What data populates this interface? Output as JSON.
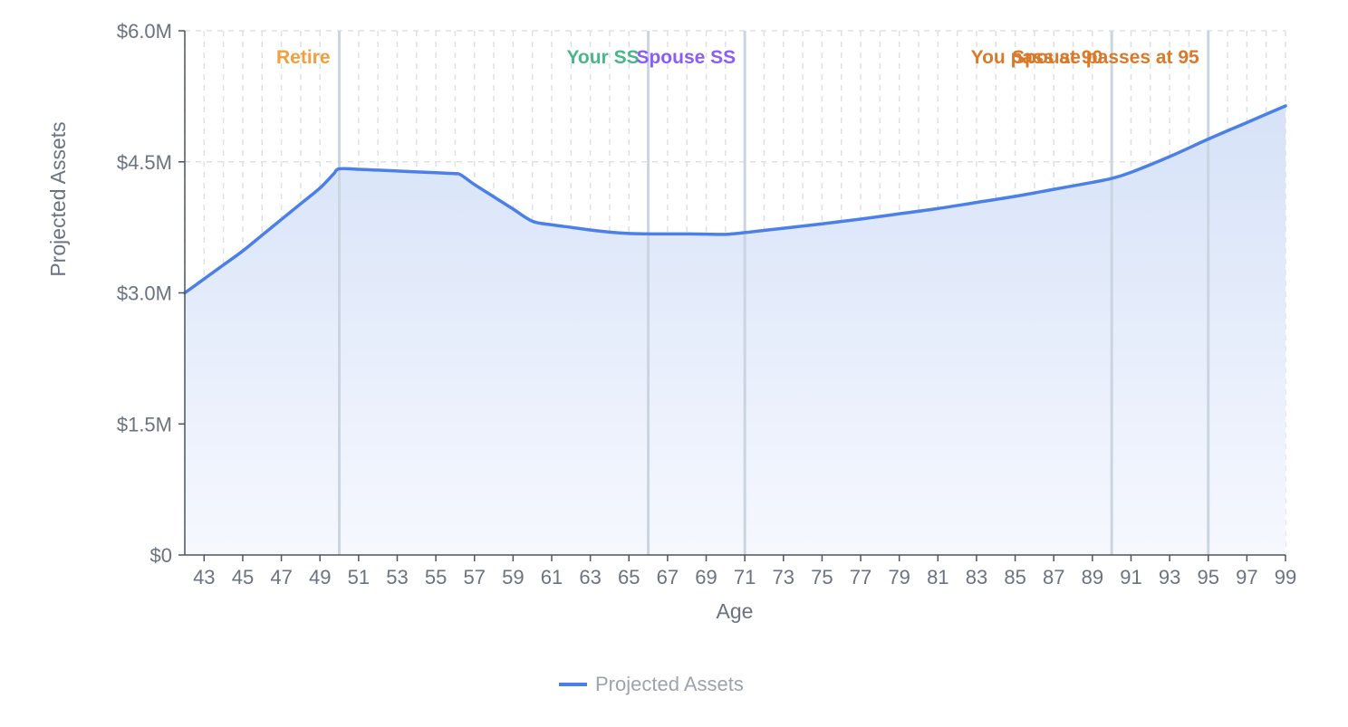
{
  "chart_data": {
    "type": "area",
    "xlabel": "Age",
    "ylabel": "Projected Assets",
    "xlim": [
      42,
      99
    ],
    "ylim": [
      0,
      6000000
    ],
    "x_ticks": [
      43,
      45,
      47,
      49,
      51,
      53,
      55,
      57,
      59,
      61,
      63,
      65,
      67,
      69,
      71,
      73,
      75,
      77,
      79,
      81,
      83,
      85,
      87,
      89,
      91,
      93,
      95,
      97,
      99
    ],
    "y_ticks": [
      {
        "value": 0,
        "label": "$0"
      },
      {
        "value": 1500000,
        "label": "$1.5M"
      },
      {
        "value": 3000000,
        "label": "$3.0M"
      },
      {
        "value": 4500000,
        "label": "$4.5M"
      },
      {
        "value": 6000000,
        "label": "$6.0M"
      }
    ],
    "grid": true,
    "legend": {
      "position": "bottom-center"
    },
    "colors": {
      "line": "#4a80e8",
      "area_top": "#d6e2f8",
      "area_bottom": "#f6f8fe",
      "grid": "#dde1e7",
      "marker_line": "#cbd5e1",
      "axis": "#4b5563"
    },
    "series": [
      {
        "name": "Projected Assets",
        "x": [
          42,
          43,
          44,
          45,
          46,
          47,
          48,
          49,
          49.7,
          50,
          51,
          52,
          53,
          54,
          55,
          56,
          56.3,
          57,
          58,
          59,
          60,
          61,
          62,
          63,
          64,
          65,
          66,
          67,
          68,
          69,
          70,
          71,
          72,
          73,
          75,
          77,
          79,
          81,
          83,
          85,
          87,
          89,
          90,
          91,
          93,
          95,
          97,
          99
        ],
        "y": [
          3000000,
          3160000,
          3320000,
          3480000,
          3660000,
          3840000,
          4020000,
          4200000,
          4360000,
          4420000,
          4415000,
          4405000,
          4395000,
          4385000,
          4375000,
          4365000,
          4350000,
          4240000,
          4100000,
          3960000,
          3820000,
          3780000,
          3750000,
          3720000,
          3695000,
          3680000,
          3675000,
          3675000,
          3675000,
          3672000,
          3670000,
          3690000,
          3715000,
          3740000,
          3790000,
          3845000,
          3905000,
          3965000,
          4035000,
          4105000,
          4185000,
          4265000,
          4310000,
          4380000,
          4560000,
          4760000,
          4950000,
          5140000
        ]
      }
    ],
    "markers": [
      {
        "x": 50,
        "label": "Retire",
        "color": "#f0a03c"
      },
      {
        "x": 66,
        "label": "Your SS",
        "color": "#4cb58a"
      },
      {
        "x": 71,
        "label": "Spouse SS",
        "color": "#8b5cf6"
      },
      {
        "x": 90,
        "label": "You pass at 90",
        "color": "#d97a2b"
      },
      {
        "x": 95,
        "label": "Spouse passes at 95",
        "color": "#d97a2b"
      }
    ]
  }
}
